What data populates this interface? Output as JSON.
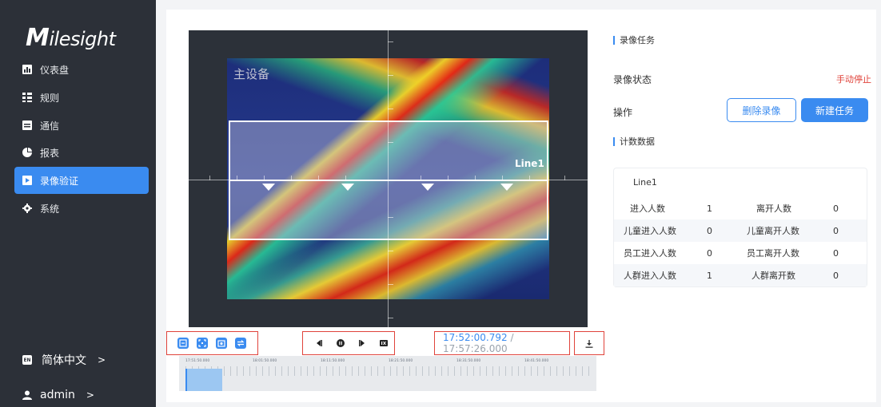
{
  "sidebar": {
    "logo": "Milesight",
    "items": [
      {
        "label": "仪表盘",
        "icon": "dashboard-icon",
        "active": false
      },
      {
        "label": "规则",
        "icon": "rules-icon",
        "active": false
      },
      {
        "label": "通信",
        "icon": "communication-icon",
        "active": false
      },
      {
        "label": "报表",
        "icon": "report-icon",
        "active": false
      },
      {
        "label": "录像验证",
        "icon": "video-verify-icon",
        "active": true
      },
      {
        "label": "系统",
        "icon": "system-gear-icon",
        "active": false
      }
    ],
    "language": {
      "badge": "EN",
      "label": "简体中文",
      "chevron": ">"
    },
    "user": {
      "label": "admin",
      "chevron": ">"
    }
  },
  "video": {
    "overlay_label": "主设备",
    "line_label": "Line1"
  },
  "controls": {
    "current_time": "17:52:00.792",
    "separator": " / ",
    "total_time": "17:57:26.000"
  },
  "timeline": {
    "labels": [
      "17:51:50.000",
      "18:01:50.000",
      "18:11:50.000",
      "18:21:50.000",
      "18:31:50.000",
      "18:41:50.000"
    ],
    "progress": 0.09
  },
  "record_task": {
    "title": "录像任务",
    "status_label": "录像状态",
    "status_value": "手动停止",
    "action_label": "操作",
    "delete_button": "删除录像",
    "new_button": "新建任务"
  },
  "count_data": {
    "title": "计数数据",
    "card_title": "Line1",
    "rows": [
      {
        "in_label": "进入人数",
        "in_value": "1",
        "out_label": "离开人数",
        "out_value": "0"
      },
      {
        "in_label": "儿童进入人数",
        "in_value": "0",
        "out_label": "儿童离开人数",
        "out_value": "0"
      },
      {
        "in_label": "员工进入人数",
        "in_value": "0",
        "out_label": "员工离开人数",
        "out_value": "0"
      },
      {
        "in_label": "人群进入人数",
        "in_value": "1",
        "out_label": "人群离开数",
        "out_value": "0"
      }
    ]
  },
  "colors": {
    "accent": "#3a8bf0",
    "sidebar": "#2c3038",
    "status_red": "#e0433b"
  }
}
